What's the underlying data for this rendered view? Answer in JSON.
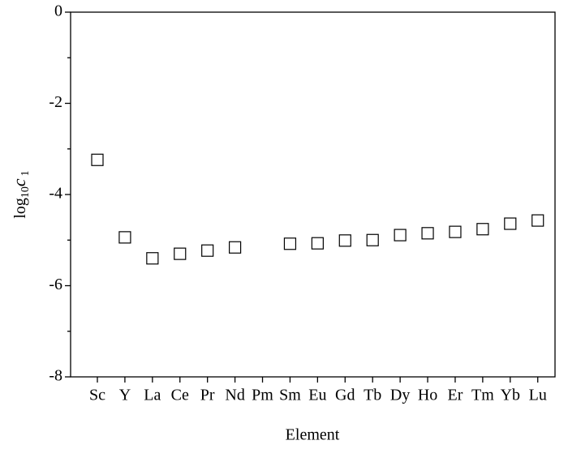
{
  "chart_data": {
    "type": "scatter",
    "categories": [
      "Sc",
      "Y",
      "La",
      "Ce",
      "Pr",
      "Nd",
      "Pm",
      "Sm",
      "Eu",
      "Gd",
      "Tb",
      "Dy",
      "Ho",
      "Er",
      "Tm",
      "Yb",
      "Lu"
    ],
    "values": [
      -3.24,
      -4.94,
      -5.4,
      -5.3,
      -5.23,
      -5.16,
      null,
      -5.08,
      -5.07,
      -5.01,
      -5.0,
      -4.89,
      -4.85,
      -4.82,
      -4.76,
      -4.64,
      -4.57
    ],
    "color": "#000000",
    "ylim": [
      -8,
      0
    ],
    "yticks": [
      -8,
      -6,
      -4,
      -2,
      0
    ],
    "yminor_ticks": [
      -7,
      -5,
      -3,
      -1
    ],
    "xlabel": "Element",
    "ylabel": {
      "base": "log",
      "base_sub": "10",
      "var": "c",
      "var_sub": "1"
    }
  }
}
